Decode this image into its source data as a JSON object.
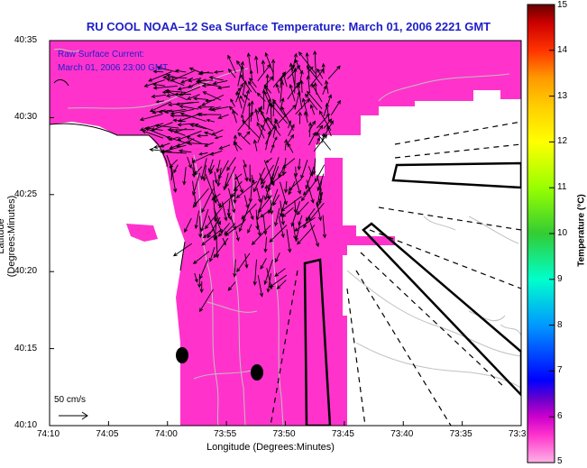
{
  "title": "RU COOL  NOAA–12  Sea Surface Temperature:  March 01, 2006 2221 GMT",
  "xlabel": "Longitude (Degrees:Minutes)",
  "ylabel": "Latitude (Degrees:Minutes)",
  "annotation": {
    "line1": "Raw Surface Current:",
    "line2": "March 01, 2006 23:00 GMT"
  },
  "scale_label": "50 cm/s",
  "x_ticks": [
    "74:10",
    "74:05",
    "74:00",
    "73:55",
    "73:50",
    "73:45",
    "73:40",
    "73:35",
    "73:3"
  ],
  "y_ticks": [
    "40:35",
    "40:30",
    "40:25",
    "40:20",
    "40:15",
    "40:10"
  ],
  "colorbar": {
    "label": "Temperature (°C)",
    "ticks": [
      "15",
      "14",
      "13",
      "12",
      "11",
      "10",
      "9",
      "8",
      "7",
      "6",
      "5"
    ],
    "min": 5,
    "max": 15,
    "colors": [
      "#ff99cc",
      "#ff33cc",
      "#cc00cc",
      "#6600cc",
      "#0000ff",
      "#0099ff",
      "#00ffcc",
      "#33cc33",
      "#99ff00",
      "#ffff00",
      "#ffcc00",
      "#ff9900",
      "#ff3300",
      "#cc0000",
      "#660000"
    ]
  },
  "colors": {
    "sst": "#ff33cc",
    "land": "#ffffff",
    "contour": "#c0c0c0",
    "title": "#1e1ec8"
  }
}
